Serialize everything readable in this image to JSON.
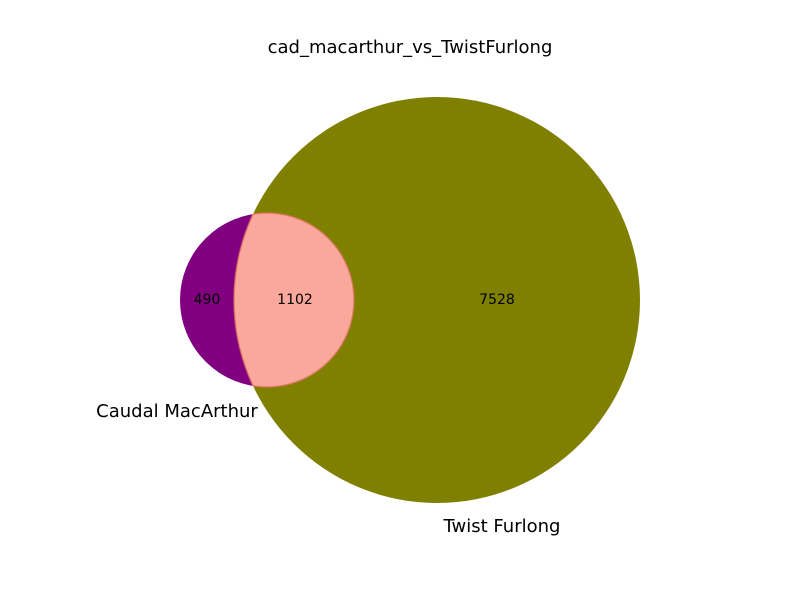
{
  "chart_data": {
    "type": "venn",
    "title": "cad_macarthur_vs_TwistFurlong",
    "sets": [
      {
        "name": "Caudal MacArthur",
        "only": 490,
        "color": "#800080"
      },
      {
        "name": "Twist Furlong",
        "only": 7528,
        "color": "#808000"
      }
    ],
    "intersection": {
      "value": 1102,
      "color": "#faa79c",
      "edge_color": "#e07060"
    }
  }
}
